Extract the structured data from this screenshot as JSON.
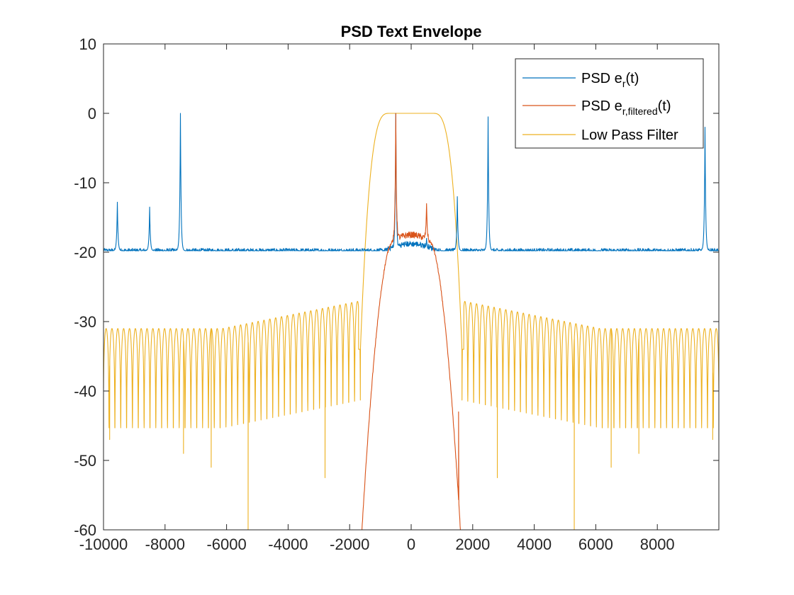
{
  "chart_data": {
    "type": "line",
    "title": "PSD Text Envelope",
    "xlabel": "",
    "ylabel": "",
    "xlim": [
      -10000,
      10000
    ],
    "ylim": [
      -60,
      10
    ],
    "xticks": [
      -10000,
      -8000,
      -6000,
      -4000,
      -2000,
      0,
      2000,
      4000,
      6000,
      8000
    ],
    "xtick_labels": [
      "-10000",
      "-8000",
      "-6000",
      "-4000",
      "-2000",
      "0",
      "2000",
      "4000",
      "6000",
      "8000"
    ],
    "yticks": [
      10,
      0,
      -10,
      -20,
      -30,
      -40,
      -50,
      -60
    ],
    "ytick_labels": [
      "10",
      "0",
      "-10",
      "-20",
      "-30",
      "-40",
      "-50",
      "-60"
    ],
    "grid": false,
    "legend_position": "top-right",
    "series": [
      {
        "key": "psd_er",
        "legend_main": "PSD e",
        "legend_sub": "r",
        "legend_tail": "(t)",
        "color": "#0072BD",
        "noise_floor": -19.8,
        "peaks": [
          {
            "x": -9550,
            "y": -12.8
          },
          {
            "x": -8500,
            "y": -13.5
          },
          {
            "x": -7500,
            "y": 0
          },
          {
            "x": -500,
            "y": 0
          },
          {
            "x": 500,
            "y": -18.0
          },
          {
            "x": 1500,
            "y": -12.0
          },
          {
            "x": 2500,
            "y": -0.5
          },
          {
            "x": 9550,
            "y": -2.0
          }
        ],
        "hump": {
          "center": 0,
          "half_width": 850,
          "level": -18.8
        }
      },
      {
        "key": "psd_er_filtered",
        "legend_main": "PSD e",
        "legend_sub": "r,filtered",
        "legend_tail": "(t)",
        "color": "#D95319",
        "passband_level": -17.5,
        "x_range": [
          -1600,
          1600
        ],
        "end_value": -60,
        "peaks": [
          {
            "x": -500,
            "y": 0
          },
          {
            "x": 500,
            "y": -13.0
          }
        ],
        "end_dip": {
          "x": 1540,
          "y": -43.0
        }
      },
      {
        "key": "low_pass_filter",
        "legend_main": "Low Pass Filter",
        "legend_sub": "",
        "legend_tail": "",
        "color": "#EDB120",
        "passband": [
          -700,
          700
        ],
        "passband_level": 0,
        "cutoff_edges": [
          -1650,
          1650
        ],
        "sidelobe_peak_near": -27.0,
        "sidelobe_peak_far": -31.0,
        "sidelobe_spacing": 190,
        "null_markers": [
          {
            "x": -9800,
            "y": -47
          },
          {
            "x": -7400,
            "y": -49
          },
          {
            "x": -6500,
            "y": -51
          },
          {
            "x": -5300,
            "y": -60
          },
          {
            "x": -2800,
            "y": -52.5
          },
          {
            "x": 2800,
            "y": -52.5
          },
          {
            "x": 5300,
            "y": -60
          },
          {
            "x": 6500,
            "y": -51
          },
          {
            "x": 7400,
            "y": -49
          },
          {
            "x": 9800,
            "y": -47
          }
        ]
      }
    ]
  }
}
